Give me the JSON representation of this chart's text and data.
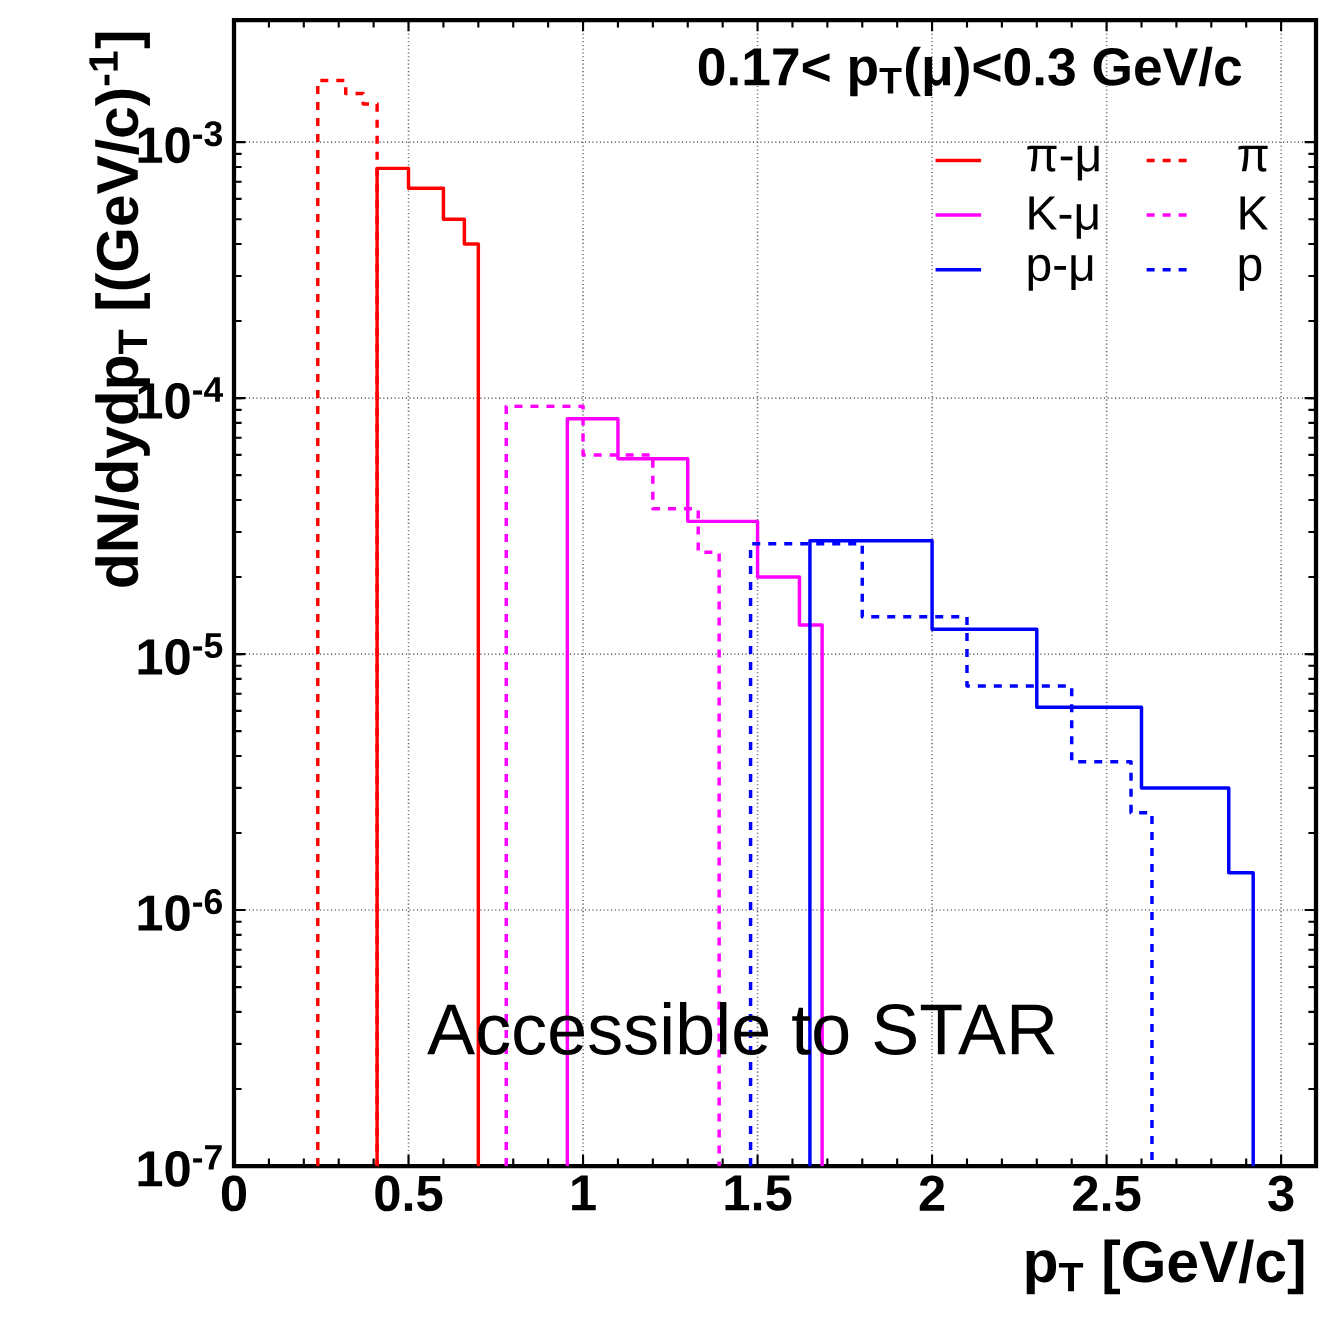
{
  "chart_data": {
    "type": "step",
    "xlabel": "p$_{T}$ [GeV/c]",
    "ylabel": "dN/dydp$_{T}$ [(GeV/c)$^{-1}$]",
    "annotations": [
      "0.17< p$_{T}$(μ)<0.3 GeV/c",
      "Accessible to STAR"
    ],
    "xlim": [
      0,
      3.1
    ],
    "ylim": [
      1e-07,
      0.003
    ],
    "log": true,
    "grid": true,
    "legend": "top right",
    "xticks": [
      0,
      0.5,
      1,
      1.5,
      2,
      2.5,
      3
    ],
    "yticks": [
      {
        "value": 1e-07,
        "label": "10$^{-7}$"
      },
      {
        "value": 1e-06,
        "label": "10$^{-6}$"
      },
      {
        "value": 1e-05,
        "label": "10$^{-5}$"
      },
      {
        "value": 0.0001,
        "label": "10$^{-4}$"
      },
      {
        "value": 0.001,
        "label": "10$^{-3}$"
      }
    ],
    "series": [
      {
        "name": "π-μ",
        "color": "#ff0000",
        "line_style": "solid",
        "x": [
          0.41,
          0.41,
          0.5,
          0.6,
          0.66,
          0.7
        ],
        "values": [
          1e-07,
          0.00079,
          0.00066,
          0.0005,
          0.0004,
          1e-07
        ]
      },
      {
        "name": "π",
        "color": "#ff0000",
        "line_style": "dashed",
        "x": [
          0.24,
          0.24,
          0.32,
          0.37,
          0.41
        ],
        "values": [
          1e-07,
          0.00174,
          0.00155,
          0.00141,
          1e-07
        ]
      },
      {
        "name": "K-μ",
        "color": "#ff00ff",
        "line_style": "solid",
        "x": [
          0.955,
          0.955,
          1.1,
          1.3,
          1.5,
          1.62,
          1.685
        ],
        "values": [
          1e-07,
          8.3e-05,
          5.8e-05,
          3.3e-05,
          2e-05,
          1.3e-05,
          1e-07
        ]
      },
      {
        "name": "K",
        "color": "#ff00ff",
        "line_style": "dashed",
        "x": [
          0.78,
          0.78,
          1.0,
          1.2,
          1.33,
          1.39
        ],
        "values": [
          1e-07,
          9.3e-05,
          6e-05,
          3.7e-05,
          2.5e-05,
          1e-07
        ]
      },
      {
        "name": "p-μ",
        "color": "#0000ff",
        "line_style": "solid",
        "x": [
          1.65,
          1.65,
          2.0,
          2.3,
          2.6,
          2.85,
          2.92
        ],
        "values": [
          1e-07,
          2.77e-05,
          1.25e-05,
          6.2e-06,
          3e-06,
          1.4e-06,
          1e-07
        ]
      },
      {
        "name": "p",
        "color": "#0000ff",
        "line_style": "dashed",
        "x": [
          1.48,
          1.48,
          1.8,
          2.1,
          2.4,
          2.57,
          2.63
        ],
        "values": [
          1e-07,
          2.7e-05,
          1.4e-05,
          7.5e-06,
          3.8e-06,
          2.4e-06,
          1e-07
        ]
      }
    ]
  }
}
